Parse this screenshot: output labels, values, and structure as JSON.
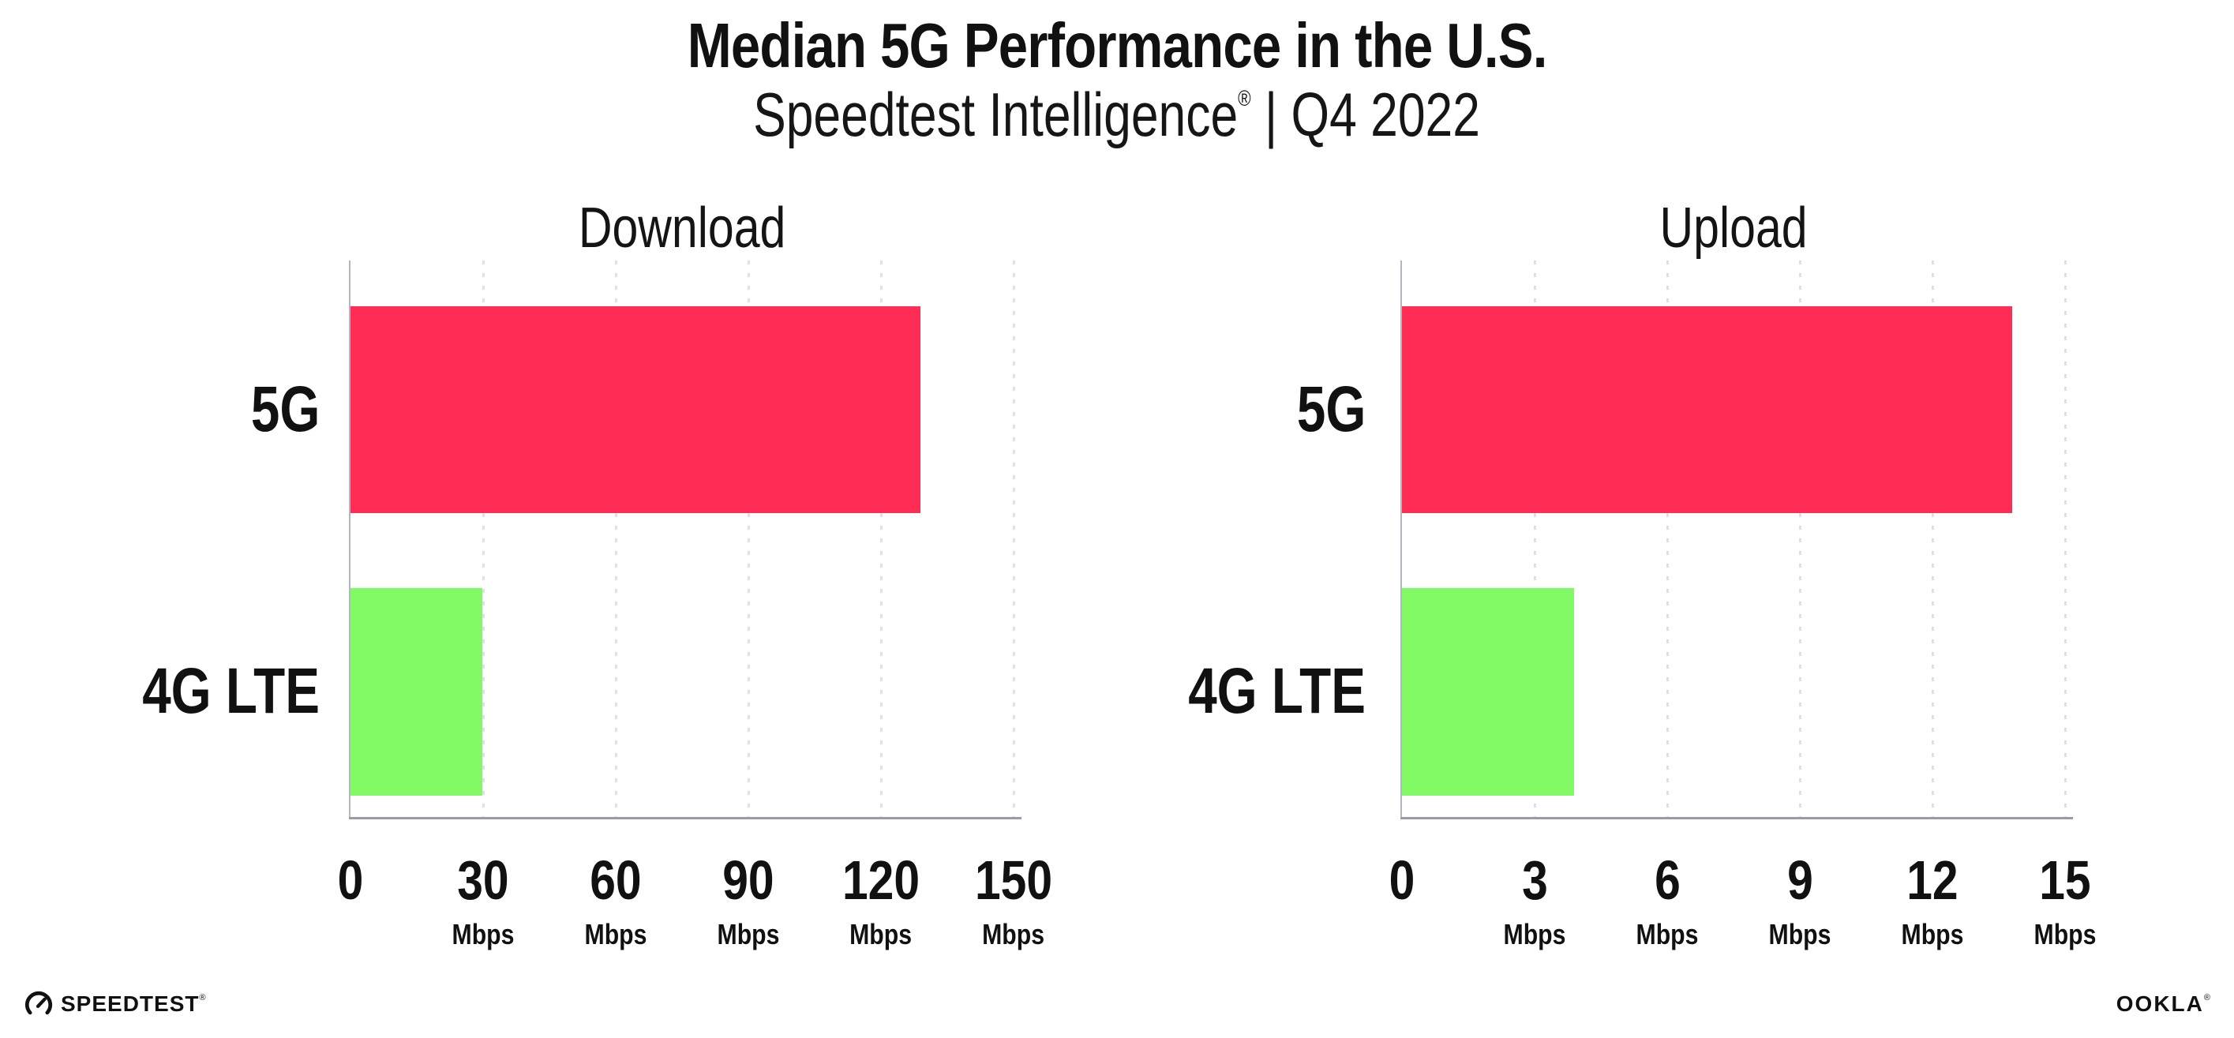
{
  "header": {
    "title": "Median 5G Performance in the U.S.",
    "subtitle_brand": "Speedtest Intelligence",
    "subtitle_reg": "®",
    "subtitle_rest": " | Q4 2022"
  },
  "chart_data": [
    {
      "type": "bar",
      "panel": "download",
      "title": "Download",
      "orientation": "horizontal",
      "categories": [
        "5G",
        "4G LTE"
      ],
      "values": [
        129,
        29.8
      ],
      "unit": "Mbps",
      "xlim": [
        0,
        150
      ],
      "ticks": [
        0,
        30,
        60,
        90,
        120,
        150
      ],
      "bar_colors": [
        "#ff2d55",
        "#82fa66"
      ],
      "grid": "dotted-vertical-on",
      "legend": "none"
    },
    {
      "type": "bar",
      "panel": "upload",
      "title": "Upload",
      "orientation": "horizontal",
      "categories": [
        "5G",
        "4G LTE"
      ],
      "values": [
        13.8,
        3.9
      ],
      "unit": "Mbps",
      "xlim": [
        0,
        15
      ],
      "ticks": [
        0,
        3,
        6,
        9,
        12,
        15
      ],
      "bar_colors": [
        "#ff2d55",
        "#82fa66"
      ],
      "grid": "dotted-vertical-on",
      "legend": "none"
    }
  ],
  "footer": {
    "speedtest_logo_text": "SPEEDTEST",
    "speedtest_reg": "®",
    "ookla_logo_text": "OOKLA",
    "ookla_reg": "®"
  },
  "colors": {
    "bar_5g": "#ff2d55",
    "bar_4g_lte": "#82fa66",
    "gridline": "#dfdfea",
    "axis": "#989ca7",
    "text": "#111111",
    "background": "#ffffff"
  }
}
